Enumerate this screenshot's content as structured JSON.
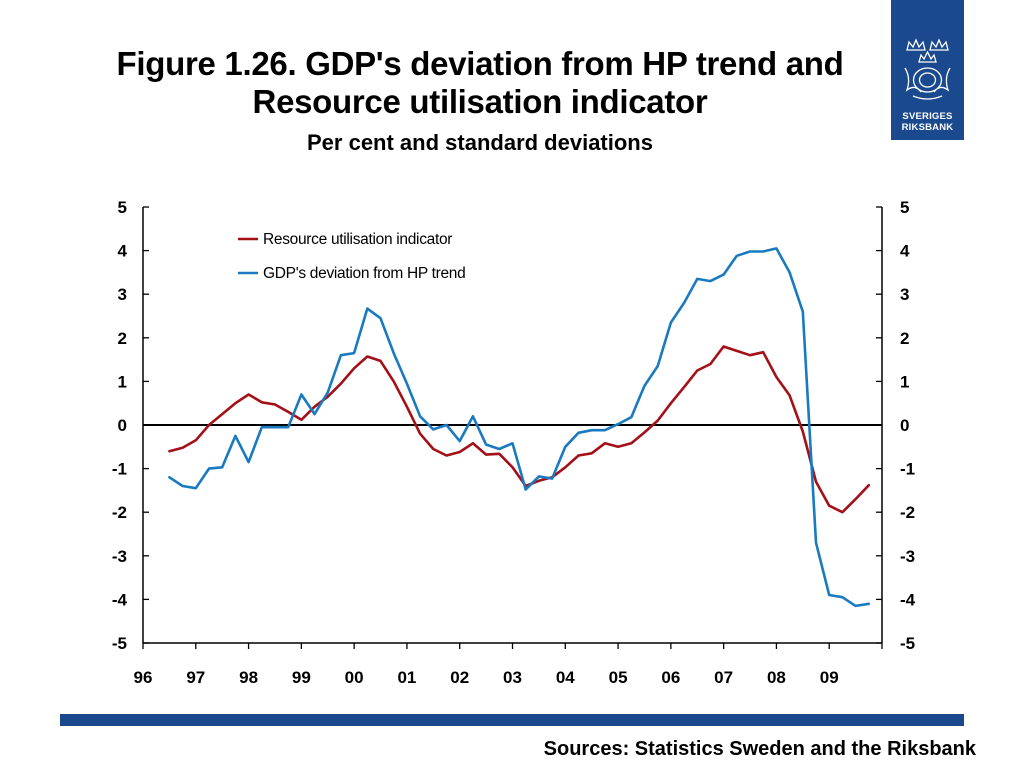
{
  "title_line1": "Figure 1.26. GDP's deviation from HP trend and",
  "title_line2": "Resource utilisation indicator",
  "subtitle": "Per cent and standard deviations",
  "logo": {
    "line1": "SVERIGES",
    "line2": "RIKSBANK",
    "background": "#1a4a8d"
  },
  "source": "Sources: Statistics Sweden and the Riksbank",
  "colors": {
    "footer_bar": "#1a4a8d"
  },
  "chart_data": {
    "type": "line",
    "title": "",
    "xlabel": "",
    "ylabel": "",
    "ylim": [
      -5,
      5
    ],
    "xlim": [
      1996,
      2010
    ],
    "yticks": [
      "-5",
      "-4",
      "-3",
      "-2",
      "-1",
      "0",
      "1",
      "2",
      "3",
      "4",
      "5"
    ],
    "xticks": [
      "96",
      "97",
      "98",
      "99",
      "00",
      "01",
      "02",
      "03",
      "04",
      "05",
      "06",
      "07",
      "08",
      "09"
    ],
    "grid": false,
    "legend_position": "top-left",
    "series": [
      {
        "name": "Resource utilisation indicator",
        "color": "#a31018",
        "x": [
          1996.5,
          1996.75,
          1997.0,
          1997.25,
          1997.5,
          1997.75,
          1998.0,
          1998.25,
          1998.5,
          1998.75,
          1999.0,
          1999.25,
          1999.5,
          1999.75,
          2000.0,
          2000.25,
          2000.5,
          2000.75,
          2001.0,
          2001.25,
          2001.5,
          2001.75,
          2002.0,
          2002.25,
          2002.5,
          2002.75,
          2003.0,
          2003.25,
          2003.5,
          2003.75,
          2004.0,
          2004.25,
          2004.5,
          2004.75,
          2005.0,
          2005.25,
          2005.5,
          2005.75,
          2006.0,
          2006.25,
          2006.5,
          2006.75,
          2007.0,
          2007.25,
          2007.5,
          2007.75,
          2008.0,
          2008.25,
          2008.5,
          2008.75,
          2009.0,
          2009.25,
          2009.5,
          2009.75
        ],
        "values": [
          -0.6,
          -0.52,
          -0.35,
          0.0,
          0.25,
          0.5,
          0.7,
          0.52,
          0.47,
          0.3,
          0.12,
          0.42,
          0.65,
          0.95,
          1.3,
          1.57,
          1.47,
          1.0,
          0.42,
          -0.2,
          -0.55,
          -0.7,
          -0.62,
          -0.42,
          -0.68,
          -0.66,
          -0.97,
          -1.4,
          -1.28,
          -1.2,
          -0.97,
          -0.7,
          -0.65,
          -0.42,
          -0.5,
          -0.42,
          -0.17,
          0.1,
          0.5,
          0.87,
          1.25,
          1.4,
          1.8,
          1.7,
          1.6,
          1.67,
          1.1,
          0.68,
          -0.15,
          -1.3,
          -1.85,
          -2.0,
          -1.7,
          -1.38
        ]
      },
      {
        "name": "GDP's deviation from HP trend",
        "color": "#1a7abf",
        "x": [
          1996.5,
          1996.75,
          1997.0,
          1997.25,
          1997.5,
          1997.75,
          1998.0,
          1998.25,
          1998.5,
          1998.75,
          1999.0,
          1999.25,
          1999.5,
          1999.75,
          2000.0,
          2000.25,
          2000.5,
          2000.75,
          2001.0,
          2001.25,
          2001.5,
          2001.75,
          2002.0,
          2002.25,
          2002.5,
          2002.75,
          2003.0,
          2003.25,
          2003.5,
          2003.75,
          2004.0,
          2004.25,
          2004.5,
          2004.75,
          2005.0,
          2005.25,
          2005.5,
          2005.75,
          2006.0,
          2006.25,
          2006.5,
          2006.75,
          2007.0,
          2007.25,
          2007.5,
          2007.75,
          2008.0,
          2008.25,
          2008.5,
          2008.75,
          2009.0,
          2009.25,
          2009.5,
          2009.75
        ],
        "values": [
          -1.2,
          -1.4,
          -1.45,
          -1.0,
          -0.97,
          -0.25,
          -0.85,
          -0.05,
          -0.05,
          -0.05,
          0.7,
          0.25,
          0.75,
          1.6,
          1.65,
          2.67,
          2.45,
          1.65,
          0.95,
          0.2,
          -0.1,
          0.0,
          -0.37,
          0.2,
          -0.45,
          -0.55,
          -0.42,
          -1.48,
          -1.18,
          -1.23,
          -0.5,
          -0.18,
          -0.12,
          -0.12,
          0.02,
          0.18,
          0.9,
          1.35,
          2.35,
          2.8,
          3.35,
          3.3,
          3.45,
          3.88,
          3.98,
          3.98,
          4.05,
          3.5,
          2.6,
          -2.7,
          -3.9,
          -3.95,
          -4.15,
          -4.1
        ]
      }
    ]
  }
}
